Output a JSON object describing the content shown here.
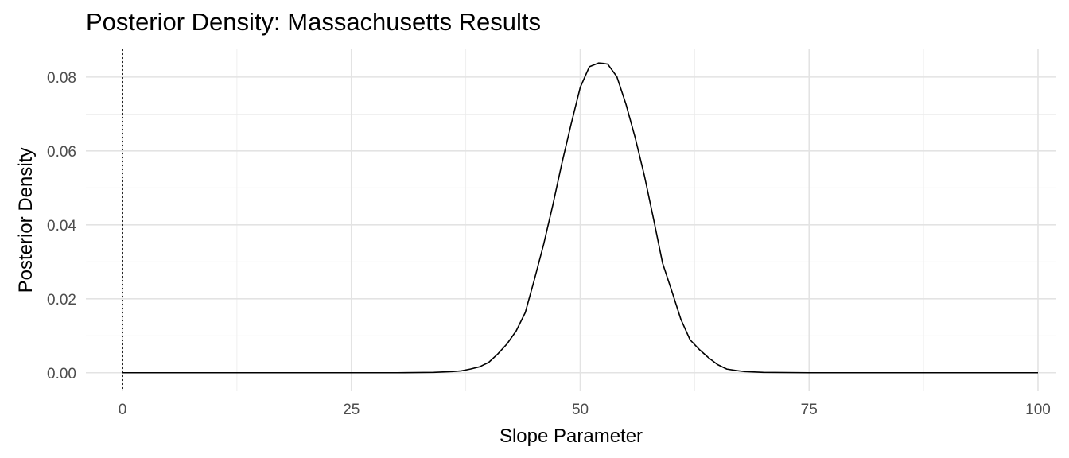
{
  "chart_data": {
    "type": "line",
    "title": "Posterior Density: Massachusetts Results",
    "xlabel": "Slope Parameter",
    "ylabel": "Posterior Density",
    "xlim": [
      -4,
      102
    ],
    "ylim": [
      -0.005,
      0.0875
    ],
    "x_ticks": [
      0,
      25,
      50,
      75,
      100
    ],
    "x_tick_labels": [
      "0",
      "25",
      "50",
      "75",
      "100"
    ],
    "y_ticks": [
      0,
      0.02,
      0.04,
      0.06,
      0.08
    ],
    "y_tick_labels": [
      "0.00",
      "0.02",
      "0.04",
      "0.06",
      "0.08"
    ],
    "grid": true,
    "reference_line": {
      "x": 0,
      "style": "dotted"
    },
    "series": [
      {
        "color": "#000000",
        "x": [
          0,
          10,
          20,
          30,
          34,
          36,
          37,
          38,
          39,
          40,
          41,
          42,
          43,
          44,
          45,
          46,
          47,
          48,
          49,
          50,
          51,
          52,
          52.5,
          53,
          54,
          55,
          56,
          57,
          58,
          59,
          60,
          61,
          62,
          63,
          64,
          65,
          66,
          67,
          68,
          70,
          75,
          80,
          90,
          100
        ],
        "y": [
          0,
          0,
          0,
          0,
          0.0001,
          0.0003,
          0.0005,
          0.001,
          0.0016,
          0.0028,
          0.0051,
          0.0078,
          0.0113,
          0.0163,
          0.0253,
          0.0347,
          0.0453,
          0.0567,
          0.0672,
          0.0772,
          0.0828,
          0.0838,
          0.0837,
          0.0835,
          0.0801,
          0.0726,
          0.0636,
          0.0534,
          0.0417,
          0.0296,
          0.0221,
          0.0144,
          0.0089,
          0.0063,
          0.0041,
          0.0022,
          0.001,
          0.0006,
          0.0003,
          0.0001,
          0,
          0,
          0,
          0
        ]
      }
    ]
  }
}
